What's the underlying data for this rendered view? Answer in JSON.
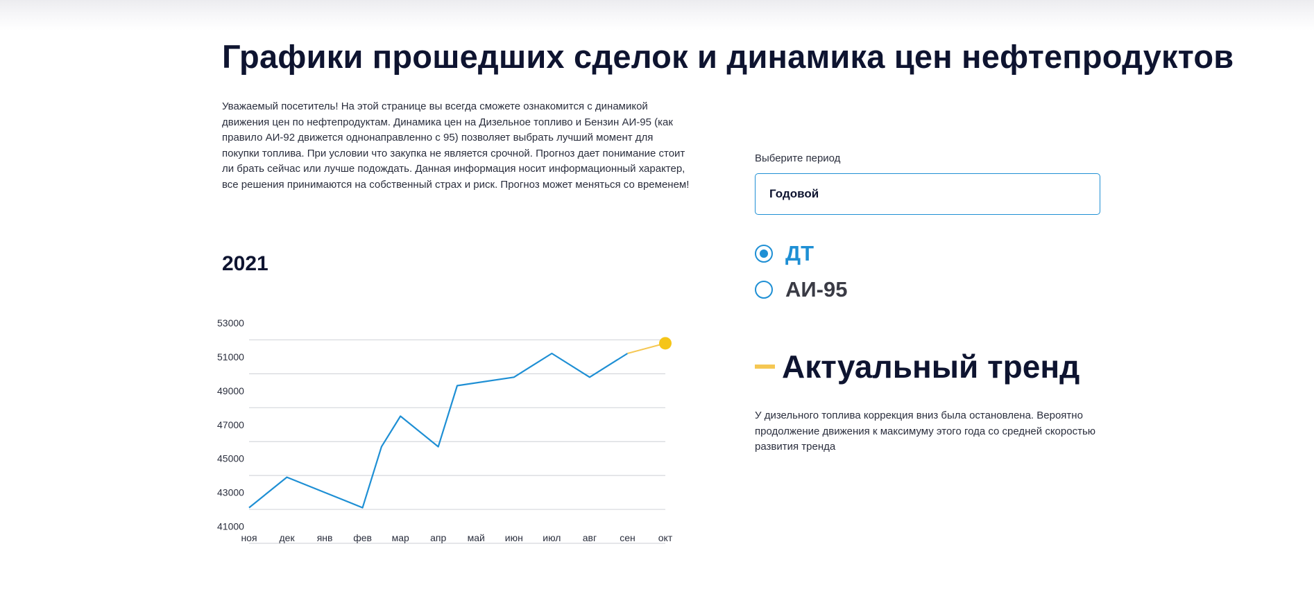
{
  "page": {
    "title": "Графики прошедших сделок и динамика цен нефтепродуктов",
    "intro": "Уважаемый посетитель! На этой странице вы всегда сможете ознакомится с динамикой движения цен по нефтепродуктам. Динамика цен на Дизельное топливо и Бензин АИ-95 (как правило АИ-92 движется однонаправленно с 95) позволяет выбрать лучший момент для покупки топлива. При условии что закупка не является срочной. Прогноз дает понимание стоит ли брать сейчас или лучше подождать. Данная информация носит информационный характер, все решения принимаются на собственный страх и риск. Прогноз может меняться со временем!"
  },
  "controls": {
    "period_label": "Выберите период",
    "period_value": "Годовой",
    "fuel_options": [
      {
        "label": "ДТ",
        "selected": true
      },
      {
        "label": "АИ-95",
        "selected": false
      }
    ]
  },
  "trend": {
    "title": "Актуальный тренд",
    "text": "У дизельного топлива коррекция вниз была остановлена. Вероятно продолжение движения к максимуму этого года со средней скоростью развития тренда"
  },
  "colors": {
    "primary": "#1e8fd4",
    "trend_accent": "#f5c753",
    "text_dark": "#0e1430"
  },
  "chart_data": {
    "type": "line",
    "title": "2021",
    "x": [
      "ноя",
      "дек",
      "янв",
      "фев",
      "мар",
      "апр",
      "май",
      "июн",
      "июл",
      "авг",
      "сен",
      "окт"
    ],
    "y_ticks": [
      53000,
      51000,
      49000,
      47000,
      45000,
      43000,
      41000
    ],
    "ylim": [
      40000,
      53000
    ],
    "grid": true,
    "series": [
      {
        "type": "historical",
        "color": "#1e8fd4",
        "points": [
          {
            "x": "ноя",
            "y": 42100
          },
          {
            "x": "дек",
            "y": 43900
          },
          {
            "x": "янв",
            "y": 43000
          },
          {
            "x": "фев",
            "y": 42100
          },
          {
            "x": "фев-мар",
            "y": 45700
          },
          {
            "x": "мар",
            "y": 47500
          },
          {
            "x": "апр",
            "y": 45700
          },
          {
            "x": "апр-май",
            "y": 49300
          },
          {
            "x": "июн",
            "y": 49800
          },
          {
            "x": "июл",
            "y": 51200
          },
          {
            "x": "авг",
            "y": 49800
          },
          {
            "x": "сен",
            "y": 51200
          }
        ]
      },
      {
        "type": "forecast",
        "color": "#f5c753",
        "points": [
          {
            "x": "сен",
            "y": 51200
          },
          {
            "x": "окт",
            "y": 51800
          }
        ]
      }
    ]
  }
}
